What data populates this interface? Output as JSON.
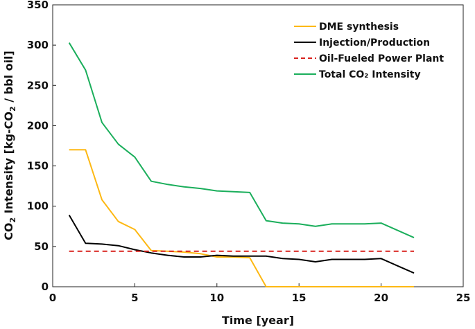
{
  "chart_data": {
    "type": "line",
    "xlabel": "Time [year]",
    "ylabel_parts": {
      "pre": "CO",
      "sub1": "2",
      "mid": " Intensity [kg-CO",
      "sub2": "2",
      "post": " / bbl oil]"
    },
    "xlim": [
      0,
      25
    ],
    "ylim": [
      0,
      350
    ],
    "xticks": [
      "0",
      "5",
      "10",
      "15",
      "20",
      "25"
    ],
    "yticks": [
      "0",
      "50",
      "100",
      "150",
      "200",
      "250",
      "300",
      "350"
    ],
    "grid": false,
    "legend_position": "top-right",
    "series": [
      {
        "name": "DME synthesis",
        "color": "#FDB813",
        "style": "solid",
        "x": [
          1,
          2,
          3,
          4,
          5,
          6,
          7,
          8,
          9,
          10,
          11,
          12,
          13,
          14,
          15,
          16,
          17,
          18,
          19,
          20,
          21,
          22
        ],
        "y": [
          170,
          170,
          108,
          81,
          71,
          45,
          44,
          43,
          41,
          37,
          37,
          36,
          0,
          0,
          0,
          0,
          0,
          0,
          0,
          0,
          0,
          0
        ]
      },
      {
        "name": "Injection/Production",
        "color": "#000000",
        "style": "solid",
        "x": [
          1,
          2,
          3,
          4,
          5,
          6,
          7,
          8,
          9,
          10,
          11,
          12,
          13,
          14,
          15,
          16,
          17,
          18,
          19,
          20,
          21,
          22
        ],
        "y": [
          89,
          54,
          53,
          51,
          46,
          42,
          39,
          37,
          37,
          39,
          38,
          38,
          38,
          35,
          34,
          31,
          34,
          34,
          34,
          35,
          26,
          17
        ]
      },
      {
        "name": "Oil-Fueled Power Plant",
        "color": "#D9221E",
        "style": "dashed",
        "x": [
          1,
          22
        ],
        "y": [
          44,
          44
        ]
      },
      {
        "name": "Total CO₂ Intensity",
        "color": "#1AAE5B",
        "style": "solid",
        "x": [
          1,
          2,
          3,
          4,
          5,
          6,
          7,
          8,
          9,
          10,
          11,
          12,
          13,
          14,
          15,
          16,
          17,
          18,
          19,
          20,
          21,
          22
        ],
        "y": [
          303,
          269,
          204,
          177,
          161,
          131,
          127,
          124,
          122,
          119,
          118,
          117,
          82,
          79,
          78,
          75,
          78,
          78,
          78,
          79,
          70,
          61
        ]
      }
    ]
  }
}
